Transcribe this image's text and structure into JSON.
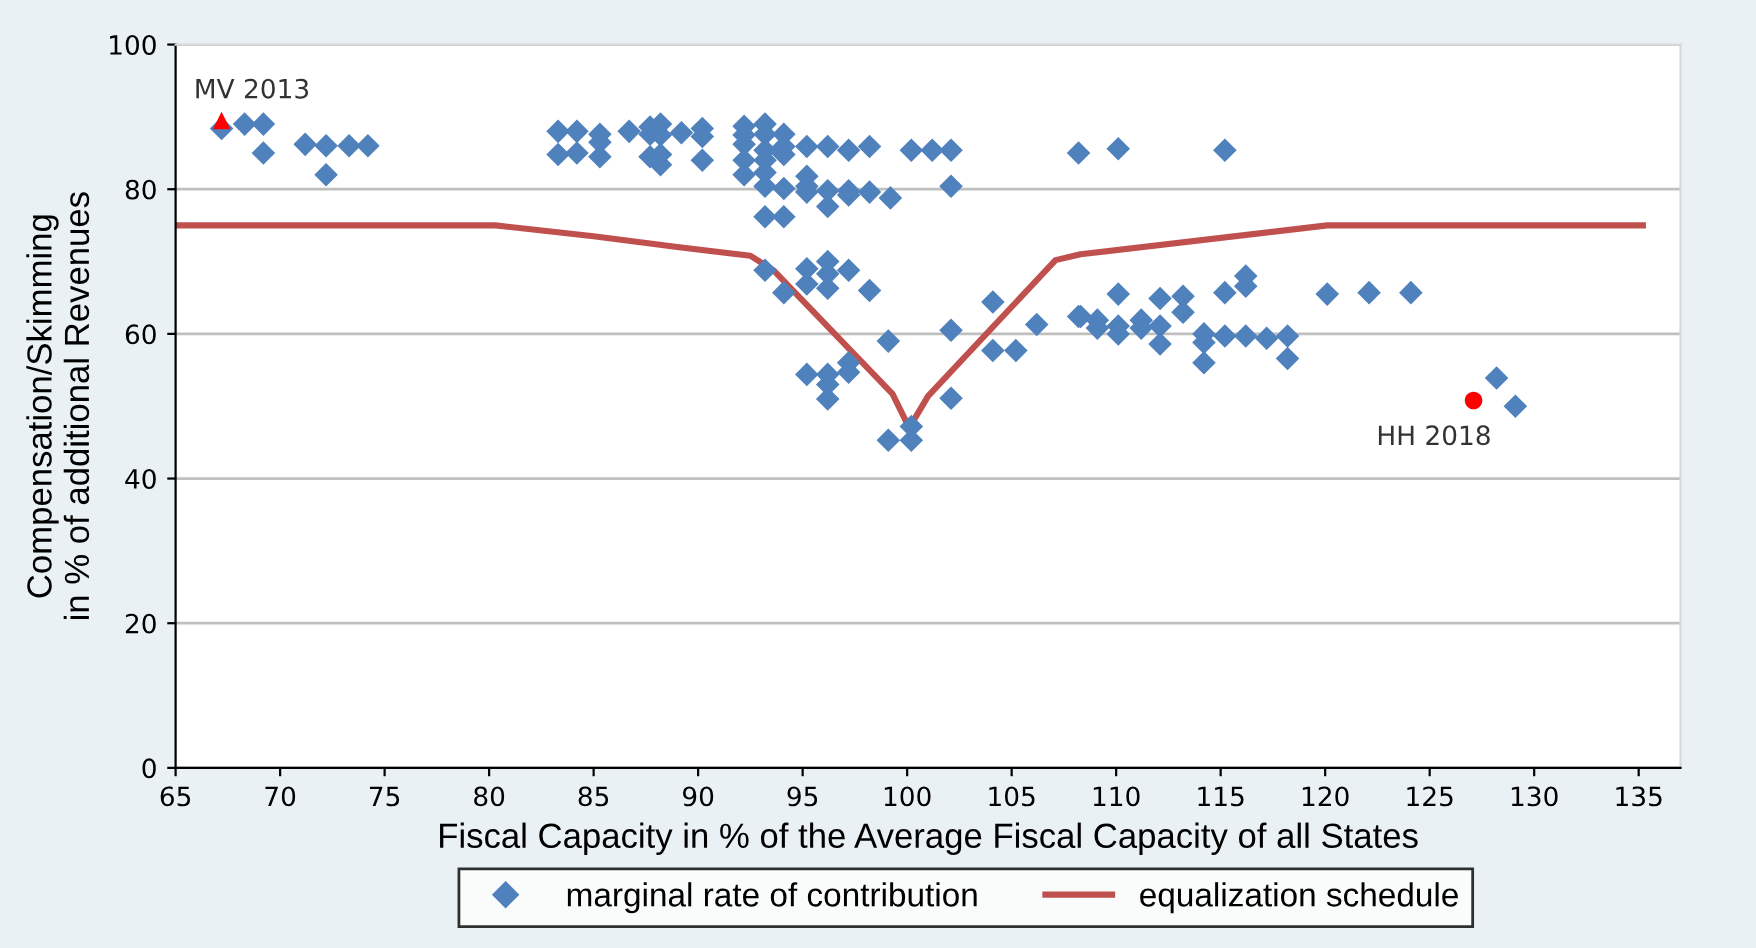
{
  "chart_data": {
    "type": "scatter",
    "xlabel": "Fiscal Capacity in % of the Average Fiscal Capacity of all States",
    "ylabel": "Compensation/Skimming\nin % of additional Revenues",
    "xlim": [
      65,
      137
    ],
    "xticks": [
      65,
      70,
      75,
      80,
      85,
      90,
      95,
      100,
      105,
      110,
      115,
      120,
      125,
      130,
      135
    ],
    "ylim": [
      0,
      100
    ],
    "yticks": [
      0,
      20,
      40,
      60,
      80,
      100
    ],
    "grid": "y",
    "legend": "bottom",
    "series": [
      {
        "name": "marginal rate of contribution",
        "marker": "diamond",
        "color": "#4f81bd",
        "x": [
          67.2,
          68.3,
          69.2,
          69.2,
          71.2,
          72.2,
          72.2,
          73.3,
          74.2,
          83.3,
          83.3,
          84.2,
          84.2,
          85.3,
          85.3,
          85.3,
          86.7,
          87.7,
          87.7,
          87.7,
          88.2,
          88.2,
          88.2,
          88.2,
          89.2,
          90.2,
          90.2,
          90.2,
          92.2,
          92.2,
          92.2,
          92.2,
          92.2,
          93.2,
          93.2,
          93.2,
          93.2,
          93.2,
          93.2,
          93.2,
          94.1,
          94.1,
          94.1,
          94.1,
          94.1,
          95.2,
          95.2,
          95.2,
          95.2,
          96.2,
          96.2,
          96.2,
          97.2,
          97.2,
          97.2,
          98.2,
          98.2,
          99.2,
          100.2,
          101.2,
          102.1,
          102.1,
          93.2,
          94.1,
          95.2,
          95.2,
          96.2,
          96.2,
          96.2,
          97.2,
          98.2,
          104.1,
          106.2,
          99.1,
          95.2,
          96.2,
          96.2,
          96.2,
          97.2,
          97.2,
          99.1,
          100.2,
          100.2,
          102.1,
          102.1,
          104.1,
          105.2,
          108.3,
          108.2,
          110.1,
          115.2,
          108.2,
          109.1,
          109.1,
          110.1,
          110.1,
          110.1,
          111.2,
          111.2,
          112.1,
          112.1,
          112.1,
          113.2,
          113.2,
          114.2,
          114.2,
          114.2,
          115.2,
          115.2,
          116.2,
          116.2,
          116.2,
          117.2,
          118.2,
          118.2,
          120.1,
          122.1,
          124.1,
          128.2,
          129.1
        ],
        "values": [
          88.4,
          89,
          89,
          85,
          86.2,
          86,
          82,
          86,
          86,
          88,
          84.8,
          88,
          85,
          87.6,
          86.5,
          84.5,
          88,
          88.6,
          87.6,
          84.5,
          89,
          87.5,
          84.8,
          83.4,
          87.8,
          88.4,
          87.3,
          84,
          88.7,
          87.5,
          86.2,
          84,
          82,
          89,
          87.6,
          85.4,
          84,
          82.3,
          80.4,
          76.2,
          87.6,
          85.9,
          84.8,
          80.1,
          76.2,
          85.9,
          81.8,
          80.4,
          79.6,
          85.9,
          79.8,
          77.6,
          85.4,
          79.8,
          79.2,
          85.9,
          79.6,
          78.8,
          85.4,
          85.4,
          85.4,
          80.4,
          68.8,
          65.7,
          69,
          66.9,
          70,
          68.3,
          66.3,
          68.8,
          66,
          64.4,
          61.3,
          59,
          54.4,
          54.4,
          53,
          51,
          56,
          54.7,
          45.3,
          47.2,
          45.3,
          60.5,
          51.1,
          57.7,
          57.7,
          62.4,
          85,
          85.6,
          85.4,
          62.4,
          61.9,
          60.8,
          65.5,
          61.1,
          60,
          61.9,
          60.8,
          64.9,
          61.1,
          58.6,
          65.2,
          63,
          60,
          58.8,
          56,
          65.7,
          59.7,
          68,
          66.6,
          59.7,
          59.4,
          59.7,
          56.6,
          65.5,
          65.7,
          65.7,
          53.9,
          50
        ]
      },
      {
        "name": "equalization schedule",
        "type": "line",
        "color": "#c0504d",
        "marker": "none",
        "line_style": "solid",
        "x": [
          65,
          80.3,
          85,
          89,
          92.5,
          93.6,
          99.3,
          100.1,
          101,
          107.1,
          108.3,
          120.1,
          135.2
        ],
        "values": [
          75,
          75,
          73.5,
          72,
          70.8,
          68.8,
          51.7,
          47,
          51.4,
          70.2,
          71,
          75,
          75
        ]
      },
      {
        "marker": "triangle",
        "color": "#ff0000",
        "x": [
          67.2
        ],
        "values": [
          89.5
        ]
      },
      {
        "marker": "circle",
        "color": "#ff0000",
        "x": [
          127.1
        ],
        "values": [
          50.8
        ]
      }
    ],
    "annotations": [
      {
        "text": "MV 2013",
        "x": 67.2,
        "y": 89.5
      },
      {
        "text": "HH 2018",
        "x": 127.1,
        "y": 50.8
      }
    ]
  }
}
